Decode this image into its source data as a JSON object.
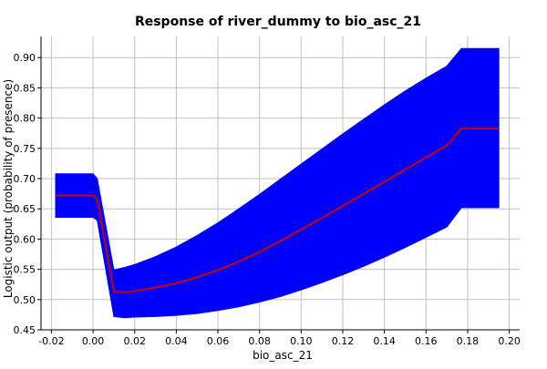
{
  "chart_data": {
    "type": "area",
    "title": "Response of river_dummy to bio_asc_21",
    "xlabel": "bio_asc_21",
    "ylabel": "Logistic output (probability of presence)",
    "xlim": [
      -0.025,
      0.205
    ],
    "ylim": [
      0.45,
      0.935
    ],
    "x_ticks": [
      -0.02,
      0.0,
      0.02,
      0.04,
      0.06,
      0.08,
      0.1,
      0.12,
      0.14,
      0.16,
      0.18,
      0.2
    ],
    "x_tick_labels": [
      "-0.02",
      "0.00",
      "0.02",
      "0.04",
      "0.06",
      "0.08",
      "0.10",
      "0.12",
      "0.14",
      "0.16",
      "0.18",
      "0.20"
    ],
    "y_ticks": [
      0.45,
      0.5,
      0.55,
      0.6,
      0.65,
      0.7,
      0.75,
      0.8,
      0.85,
      0.9
    ],
    "y_tick_labels": [
      "0.45",
      "0.50",
      "0.55",
      "0.60",
      "0.65",
      "0.70",
      "0.75",
      "0.80",
      "0.85",
      "0.90"
    ],
    "grid": true,
    "series": [
      {
        "role": "mean",
        "color": "#cc0000",
        "x": [
          -0.018,
          0.0,
          0.002,
          0.01,
          0.015,
          0.02,
          0.03,
          0.04,
          0.05,
          0.06,
          0.07,
          0.08,
          0.09,
          0.1,
          0.11,
          0.12,
          0.13,
          0.14,
          0.15,
          0.16,
          0.17,
          0.177,
          0.195
        ],
        "y": [
          0.672,
          0.672,
          0.665,
          0.513,
          0.512,
          0.514,
          0.52,
          0.527,
          0.537,
          0.549,
          0.563,
          0.579,
          0.597,
          0.616,
          0.635,
          0.655,
          0.675,
          0.695,
          0.715,
          0.735,
          0.755,
          0.783,
          0.783
        ]
      },
      {
        "role": "upper",
        "color": "#0000ff",
        "x": [
          -0.018,
          0.0,
          0.002,
          0.01,
          0.015,
          0.02,
          0.03,
          0.04,
          0.05,
          0.06,
          0.07,
          0.08,
          0.09,
          0.1,
          0.11,
          0.12,
          0.13,
          0.14,
          0.15,
          0.16,
          0.17,
          0.177,
          0.195
        ],
        "y": [
          0.708,
          0.708,
          0.7,
          0.549,
          0.553,
          0.558,
          0.571,
          0.587,
          0.606,
          0.627,
          0.65,
          0.674,
          0.699,
          0.724,
          0.749,
          0.774,
          0.798,
          0.822,
          0.845,
          0.866,
          0.886,
          0.915,
          0.915
        ]
      },
      {
        "role": "lower",
        "color": "#0000ff",
        "x": [
          -0.018,
          0.0,
          0.002,
          0.01,
          0.015,
          0.02,
          0.03,
          0.04,
          0.05,
          0.06,
          0.07,
          0.08,
          0.09,
          0.1,
          0.11,
          0.12,
          0.13,
          0.14,
          0.15,
          0.16,
          0.17,
          0.177,
          0.195
        ],
        "y": [
          0.636,
          0.636,
          0.631,
          0.472,
          0.47,
          0.471,
          0.472,
          0.474,
          0.477,
          0.482,
          0.488,
          0.496,
          0.505,
          0.516,
          0.528,
          0.541,
          0.555,
          0.57,
          0.586,
          0.603,
          0.62,
          0.652,
          0.652
        ]
      }
    ]
  }
}
